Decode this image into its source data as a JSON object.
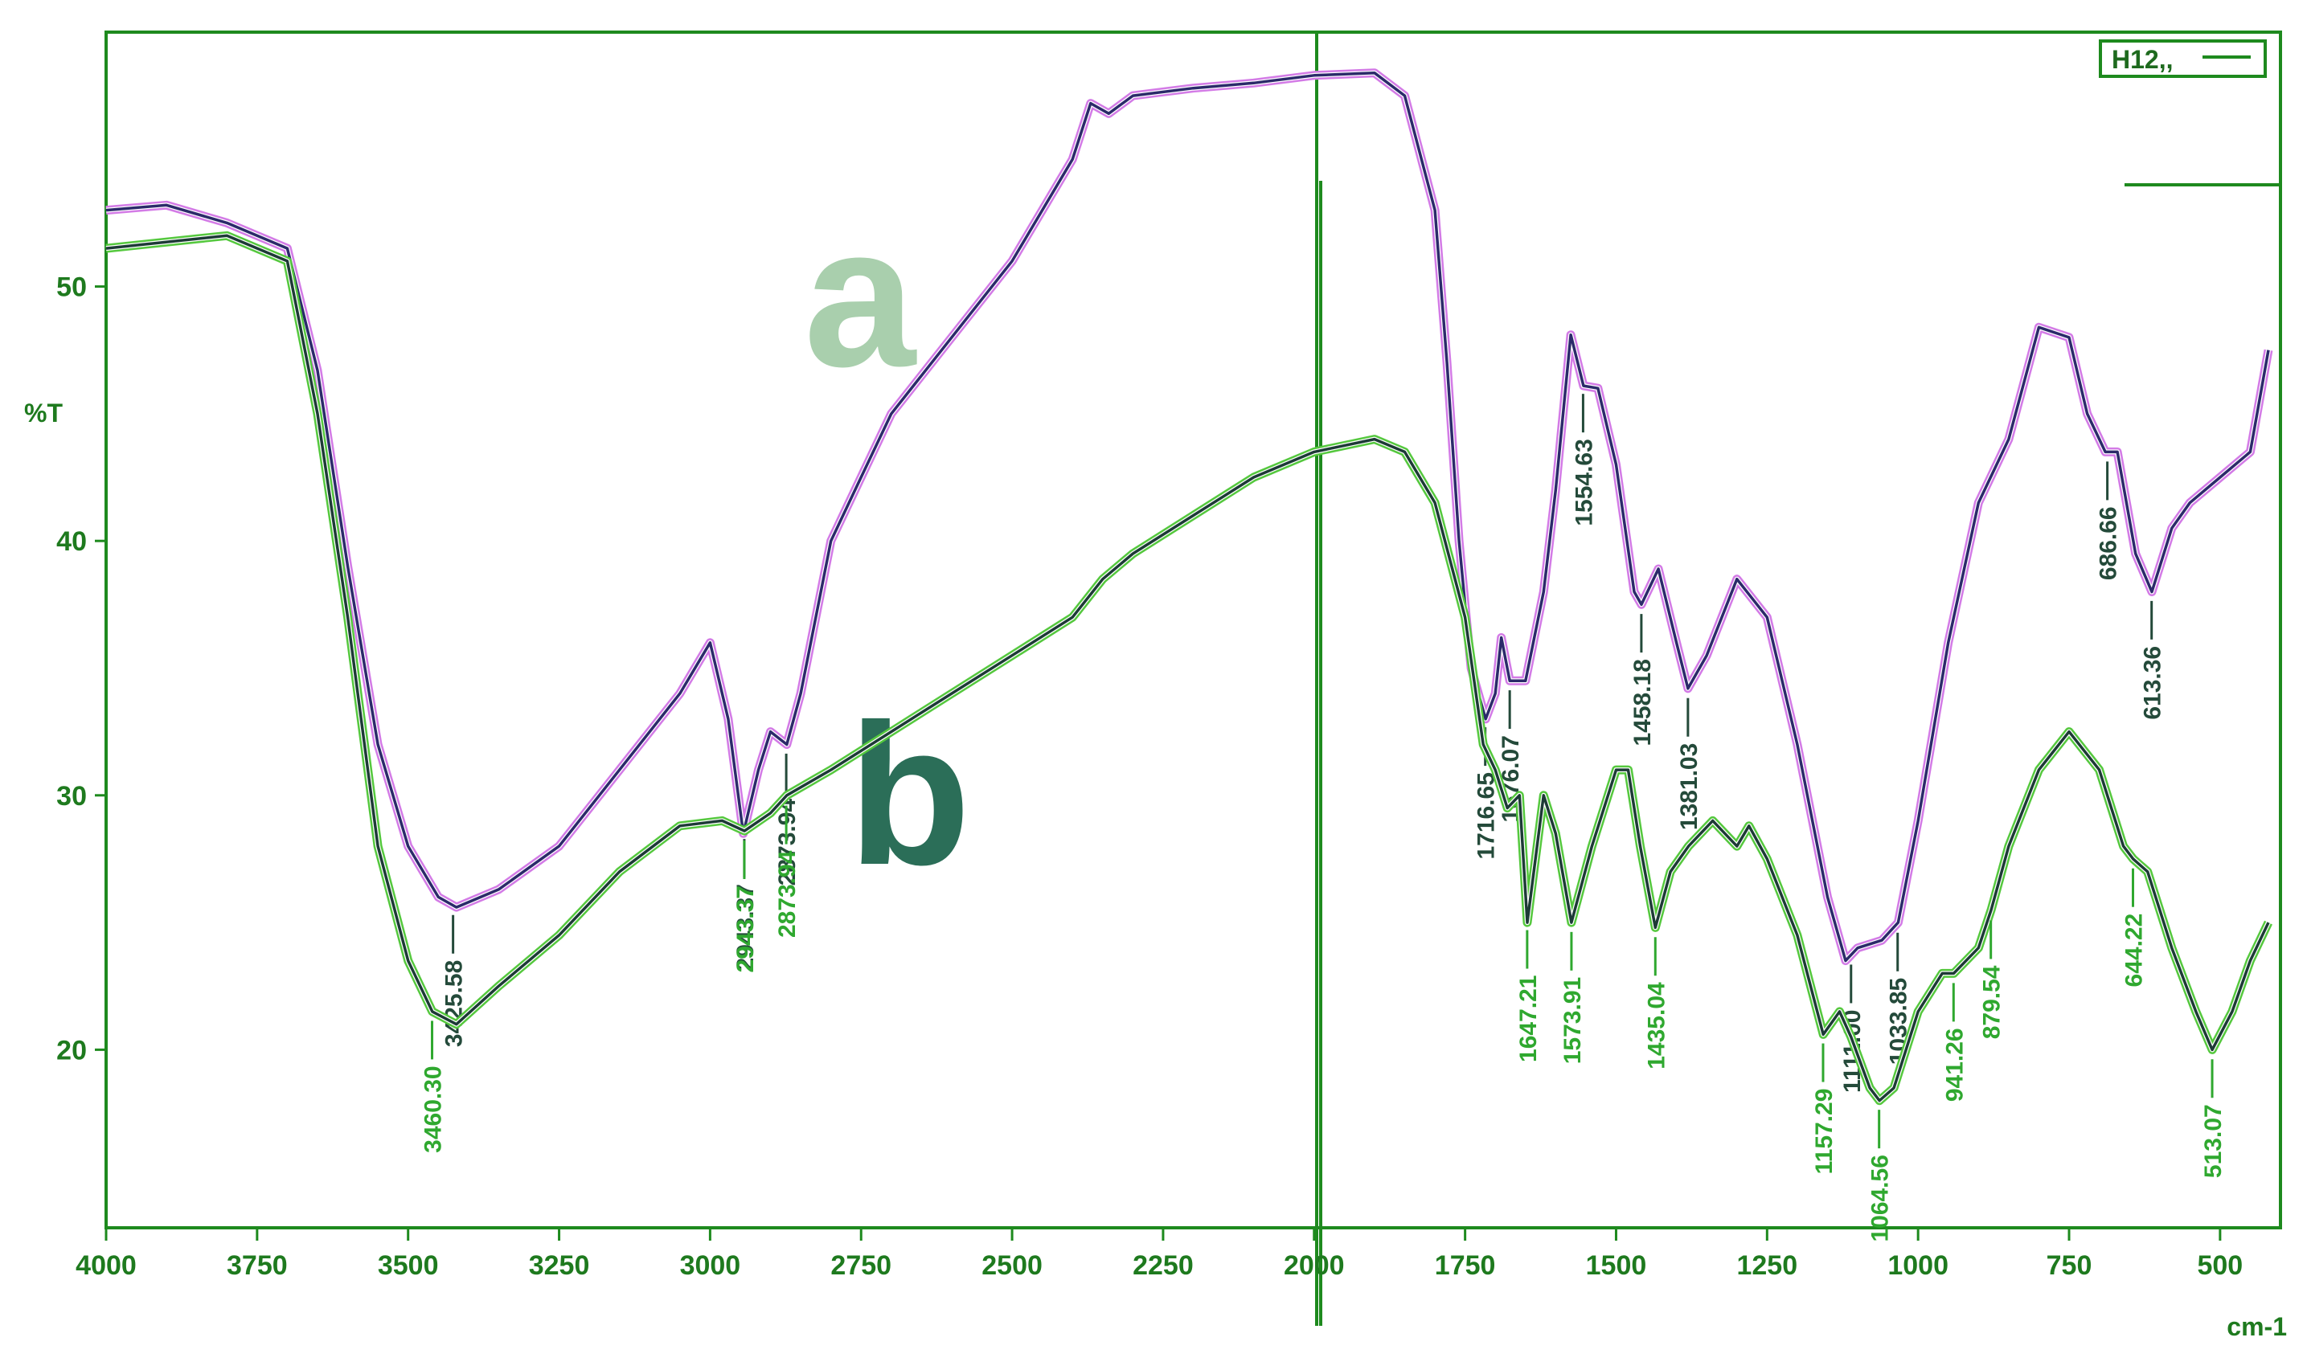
{
  "chart_data": {
    "type": "line",
    "ylabel": "%T",
    "xlabel": "cm-1",
    "legend_text": "H12,,",
    "xlim": [
      4000,
      400
    ],
    "ylim": [
      13,
      60
    ],
    "xticks": [
      4000,
      3750,
      3500,
      3250,
      3000,
      2750,
      2500,
      2250,
      2000,
      1750,
      1500,
      1250,
      1000,
      750,
      500
    ],
    "yticks": [
      20,
      30,
      40,
      50
    ],
    "series": [
      {
        "name": "a",
        "color": "#2b2a6a",
        "halo": "#d37be6",
        "label_color": "#244a3a",
        "x": [
          4000,
          3900,
          3800,
          3700,
          3650,
          3600,
          3550,
          3500,
          3450,
          3420,
          3350,
          3250,
          3150,
          3050,
          3000,
          2970,
          2945,
          2920,
          2900,
          2873,
          2850,
          2800,
          2750,
          2700,
          2600,
          2500,
          2400,
          2370,
          2340,
          2300,
          2200,
          2100,
          2000,
          1900,
          1850,
          1800,
          1780,
          1760,
          1740,
          1716,
          1700,
          1690,
          1676,
          1650,
          1620,
          1600,
          1575,
          1554,
          1530,
          1500,
          1470,
          1458,
          1430,
          1400,
          1381,
          1350,
          1300,
          1250,
          1200,
          1150,
          1120,
          1100,
          1060,
          1033,
          1000,
          950,
          900,
          850,
          800,
          750,
          720,
          690,
          670,
          640,
          613,
          580,
          550,
          500,
          450,
          420
        ],
        "values": [
          53,
          53.2,
          52.5,
          51.5,
          46.7,
          39,
          32,
          28,
          26,
          25.6,
          26.3,
          28,
          31,
          34,
          36,
          33,
          28.5,
          31,
          32.5,
          32,
          34,
          40,
          42.5,
          45,
          48,
          51,
          55,
          57.2,
          56.8,
          57.5,
          57.8,
          58,
          58.3,
          58.4,
          57.5,
          53,
          47,
          40,
          35,
          33,
          34,
          36.2,
          34.5,
          34.5,
          38,
          42,
          48.1,
          46.1,
          46,
          43,
          38,
          37.5,
          38.9,
          36,
          34.2,
          35.5,
          38.5,
          37,
          32,
          26,
          23.5,
          24,
          24.3,
          25,
          29,
          36,
          41.5,
          44,
          48.4,
          48,
          45,
          43.5,
          43.5,
          39.5,
          38,
          40.5,
          41.5,
          42.5,
          43.5,
          47.5
        ],
        "peaks": [
          3425.58,
          2943.37,
          2873.94,
          1716.65,
          1676.07,
          1554.63,
          1458.18,
          1381.03,
          {
            "value": 1111.0,
            "label": "1111.00"
          },
          1033.85,
          686.66,
          613.36
        ]
      },
      {
        "name": "b",
        "color": "#1d3a36",
        "halo": "#55c83e",
        "label_color": "#2fa82f",
        "x": [
          4000,
          3800,
          3700,
          3650,
          3600,
          3550,
          3500,
          3460,
          3420,
          3350,
          3250,
          3150,
          3050,
          2980,
          2943,
          2900,
          2873,
          2800,
          2700,
          2600,
          2500,
          2400,
          2350,
          2300,
          2200,
          2100,
          2000,
          1900,
          1850,
          1800,
          1750,
          1720,
          1700,
          1680,
          1660,
          1647,
          1620,
          1600,
          1574,
          1540,
          1500,
          1480,
          1460,
          1435,
          1410,
          1380,
          1340,
          1300,
          1280,
          1250,
          1200,
          1157,
          1130,
          1111,
          1080,
          1064,
          1040,
          1000,
          960,
          941,
          900,
          879,
          850,
          800,
          750,
          700,
          660,
          644,
          620,
          580,
          540,
          513,
          480,
          450,
          420
        ],
        "values": [
          51.5,
          52,
          51,
          45,
          37,
          28,
          23.5,
          21.5,
          21,
          22.5,
          24.5,
          27,
          28.8,
          29,
          28.6,
          29.3,
          30,
          31,
          32.5,
          34,
          35.5,
          37,
          38.5,
          39.5,
          41,
          42.5,
          43.5,
          44,
          43.5,
          41.5,
          37,
          32,
          31,
          29.5,
          30,
          25,
          30,
          28.5,
          25,
          28,
          31,
          31,
          28,
          24.8,
          27,
          28,
          29,
          28,
          28.8,
          27.5,
          24.5,
          20.6,
          21.5,
          20.5,
          18.5,
          18,
          18.5,
          21.5,
          23,
          23,
          24,
          25.5,
          28,
          31,
          32.5,
          31,
          28,
          27.5,
          27,
          24,
          21.5,
          20,
          21.5,
          23.5,
          25
        ],
        "peaks": [
          {
            "value": 3460.3,
            "label": "3460.30"
          },
          2943.37,
          2873.94,
          1647.21,
          1573.91,
          1435.04,
          1157.29,
          1064.56,
          941.26,
          879.54,
          644.22,
          513.07
        ]
      }
    ]
  }
}
